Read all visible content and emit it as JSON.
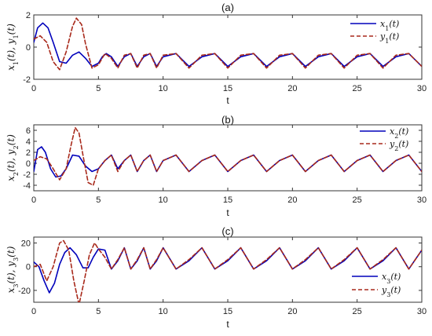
{
  "colors": {
    "solid": "#0000bb",
    "dashed": "#a8291b",
    "axis": "#333333"
  },
  "chart_data": [
    {
      "type": "line",
      "title": "(a)",
      "xlabel": "t",
      "ylabel": "x1(t), y1(t)",
      "ylabel_parts": [
        "x",
        "1",
        "(t), ",
        "y",
        "1",
        "(t)"
      ],
      "xlim": [
        0,
        30
      ],
      "ylim": [
        -2,
        2
      ],
      "xticks": [
        0,
        5,
        10,
        15,
        20,
        25,
        30
      ],
      "yticks": [
        -2,
        0,
        2
      ],
      "legend_position": "top-right",
      "series": [
        {
          "name": "x1(t)",
          "name_parts": [
            "x",
            "1",
            "(t)"
          ],
          "style": "solid",
          "x": [
            0,
            0.3,
            0.7,
            1.1,
            1.5,
            2.0,
            2.5,
            3.0,
            3.5,
            4.0,
            4.5,
            5.0,
            5.3,
            5.6,
            6.0,
            6.5,
            7.0,
            7.5,
            8.0,
            8.5,
            9.0,
            9.5,
            10.0,
            11.0,
            12.0,
            13.0,
            14.0,
            15.0,
            16.0,
            17.0,
            18.0,
            19.0,
            20.0,
            21.0,
            22.0,
            23.0,
            24.0,
            25.0,
            26.0,
            27.0,
            28.0,
            29.0,
            30.0
          ],
          "y": [
            0.3,
            1.2,
            1.5,
            1.2,
            0.3,
            -0.9,
            -1.0,
            -0.5,
            -0.3,
            -0.7,
            -1.2,
            -1.0,
            -0.6,
            -0.4,
            -0.6,
            -1.2,
            -0.6,
            -0.4,
            -1.2,
            -0.6,
            -0.4,
            -1.2,
            -0.6,
            -0.4,
            -1.2,
            -0.6,
            -0.4,
            -1.2,
            -0.6,
            -0.4,
            -1.2,
            -0.6,
            -0.4,
            -1.2,
            -0.6,
            -0.4,
            -1.2,
            -0.6,
            -0.4,
            -1.2,
            -0.6,
            -0.4,
            -1.2
          ]
        },
        {
          "name": "y1(t)",
          "name_parts": [
            "y",
            "1",
            "(t)"
          ],
          "style": "dashed",
          "x": [
            0,
            0.5,
            1.0,
            1.5,
            2.0,
            2.5,
            3.0,
            3.3,
            3.7,
            4.0,
            4.5,
            5.0,
            5.5,
            6.0,
            6.5,
            7.0,
            7.5,
            8.0,
            8.5,
            9.0,
            9.5,
            10.0,
            11.0,
            12.0,
            13.0,
            14.0,
            15.0,
            16.0,
            17.0,
            18.0,
            19.0,
            20.0,
            21.0,
            22.0,
            23.0,
            24.0,
            25.0,
            26.0,
            27.0,
            28.0,
            29.0,
            30.0
          ],
          "y": [
            0.5,
            0.7,
            0.3,
            -0.9,
            -1.4,
            -0.3,
            1.3,
            1.8,
            1.4,
            0.2,
            -1.3,
            -1.1,
            -0.4,
            -0.7,
            -1.3,
            -0.5,
            -0.4,
            -1.3,
            -0.5,
            -0.4,
            -1.3,
            -0.5,
            -0.4,
            -1.3,
            -0.5,
            -0.4,
            -1.3,
            -0.5,
            -0.4,
            -1.3,
            -0.5,
            -0.4,
            -1.3,
            -0.5,
            -0.4,
            -1.3,
            -0.5,
            -0.4,
            -1.3,
            -0.5,
            -0.4,
            -1.2
          ]
        }
      ]
    },
    {
      "type": "line",
      "title": "(b)",
      "xlabel": "t",
      "ylabel": "x2(t), y2(t)",
      "ylabel_parts": [
        "x",
        "2",
        "(t), ",
        "y",
        "2",
        "(t)"
      ],
      "xlim": [
        0,
        30
      ],
      "ylim": [
        -5,
        7
      ],
      "xticks": [
        0,
        5,
        10,
        15,
        20,
        25,
        30
      ],
      "yticks": [
        -4,
        -2,
        0,
        2,
        4,
        6
      ],
      "legend_position": "top-right",
      "series": [
        {
          "name": "x2(t)",
          "name_parts": [
            "x",
            "2",
            "(t)"
          ],
          "style": "solid",
          "x": [
            0,
            0.3,
            0.6,
            0.9,
            1.3,
            1.7,
            2.1,
            2.5,
            3.0,
            3.5,
            4.0,
            4.5,
            5.0,
            5.5,
            6.0,
            6.5,
            7.0,
            7.5,
            8.0,
            8.5,
            9.0,
            9.5,
            10.0,
            11.0,
            12.0,
            13.0,
            14.0,
            15.0,
            16.0,
            17.0,
            18.0,
            19.0,
            20.0,
            21.0,
            22.0,
            23.0,
            24.0,
            25.0,
            26.0,
            27.0,
            28.0,
            29.0,
            30.0
          ],
          "y": [
            -1.5,
            2.5,
            3.0,
            2.0,
            -1.0,
            -2.5,
            -2.3,
            -1.0,
            1.5,
            1.3,
            -0.5,
            -1.5,
            -1.0,
            0.5,
            1.5,
            -1.0,
            0.5,
            1.5,
            -1.5,
            0.5,
            1.5,
            -1.5,
            0.5,
            1.5,
            -1.5,
            0.5,
            1.5,
            -1.5,
            0.5,
            1.5,
            -1.5,
            0.5,
            1.5,
            -1.5,
            0.5,
            1.5,
            -1.5,
            0.5,
            1.5,
            -1.5,
            0.5,
            1.5,
            -1.5
          ]
        },
        {
          "name": "y2(t)",
          "name_parts": [
            "y",
            "2",
            "(t)"
          ],
          "style": "dashed",
          "x": [
            0,
            0.5,
            1.0,
            1.5,
            2.0,
            2.5,
            2.9,
            3.2,
            3.5,
            3.8,
            4.2,
            4.6,
            5.0,
            5.5,
            6.0,
            6.5,
            7.0,
            7.5,
            8.0,
            8.5,
            9.0,
            9.5,
            10.0,
            11.0,
            12.0,
            13.0,
            14.0,
            15.0,
            16.0,
            17.0,
            18.0,
            19.0,
            20.0,
            21.0,
            22.0,
            23.0,
            24.0,
            25.0,
            26.0,
            27.0,
            28.0,
            29.0,
            30.0
          ],
          "y": [
            0.5,
            1.2,
            0.8,
            -1.0,
            -3.0,
            -1.0,
            3.5,
            6.5,
            5.5,
            1.5,
            -3.5,
            -4.0,
            -1.0,
            0.5,
            1.5,
            -1.5,
            0.5,
            1.5,
            -1.5,
            0.5,
            1.5,
            -1.5,
            0.5,
            1.5,
            -1.5,
            0.5,
            1.5,
            -1.5,
            0.5,
            1.5,
            -1.5,
            0.5,
            1.5,
            -1.5,
            0.5,
            1.5,
            -1.5,
            0.5,
            1.5,
            -1.5,
            0.5,
            1.5,
            -1.5
          ]
        }
      ]
    },
    {
      "type": "line",
      "title": "(c)",
      "xlabel": "t",
      "ylabel": "x3(t), y3(t)",
      "ylabel_parts": [
        "x",
        "3",
        "(t), ",
        "y",
        "3",
        "(t)"
      ],
      "xlim": [
        0,
        30
      ],
      "ylim": [
        -30,
        25
      ],
      "xticks": [
        0,
        5,
        10,
        15,
        20,
        25,
        30
      ],
      "yticks": [
        -20,
        0,
        20
      ],
      "legend_position": "bottom-right",
      "series": [
        {
          "name": "x3(t)",
          "name_parts": [
            "x",
            "3",
            "(t)"
          ],
          "style": "solid",
          "x": [
            0,
            0.4,
            0.8,
            1.2,
            1.6,
            2.0,
            2.4,
            2.8,
            3.3,
            3.8,
            4.2,
            4.6,
            5.0,
            5.5,
            6.0,
            6.5,
            7.0,
            7.5,
            8.0,
            8.5,
            9.0,
            9.5,
            10.0,
            11.0,
            12.0,
            13.0,
            14.0,
            15.0,
            16.0,
            17.0,
            18.0,
            19.0,
            20.0,
            21.0,
            22.0,
            23.0,
            24.0,
            25.0,
            26.0,
            27.0,
            28.0,
            29.0,
            30.0
          ],
          "y": [
            4,
            0,
            -12,
            -22,
            -14,
            2,
            12,
            16,
            10,
            -1,
            -1,
            8,
            15,
            14,
            -2,
            5,
            16,
            -2,
            5,
            16,
            -2,
            5,
            16,
            -2,
            5,
            16,
            -2,
            5,
            16,
            -2,
            5,
            16,
            -2,
            5,
            16,
            -2,
            5,
            16,
            -2,
            5,
            16,
            -2,
            14
          ]
        },
        {
          "name": "y3(t)",
          "name_parts": [
            "y",
            "3",
            "(t)"
          ],
          "style": "dashed",
          "x": [
            0,
            0.5,
            1.0,
            1.5,
            2.0,
            2.3,
            2.7,
            3.1,
            3.5,
            3.9,
            4.3,
            4.7,
            5.0,
            5.5,
            6.0,
            6.5,
            7.0,
            7.5,
            8.0,
            8.5,
            9.0,
            9.5,
            10.0,
            11.0,
            12.0,
            13.0,
            14.0,
            15.0,
            16.0,
            17.0,
            18.0,
            19.0,
            20.0,
            21.0,
            22.0,
            23.0,
            24.0,
            25.0,
            26.0,
            27.0,
            28.0,
            29.0,
            30.0
          ],
          "y": [
            0,
            2,
            -12,
            0,
            20,
            22,
            14,
            -12,
            -32,
            -12,
            10,
            20,
            15,
            8,
            -2,
            6,
            16,
            -2,
            6,
            16,
            -2,
            6,
            16,
            -2,
            6,
            16,
            -2,
            6,
            16,
            -2,
            6,
            16,
            -2,
            6,
            16,
            -2,
            6,
            16,
            -2,
            6,
            16,
            -2,
            14
          ]
        }
      ]
    }
  ]
}
